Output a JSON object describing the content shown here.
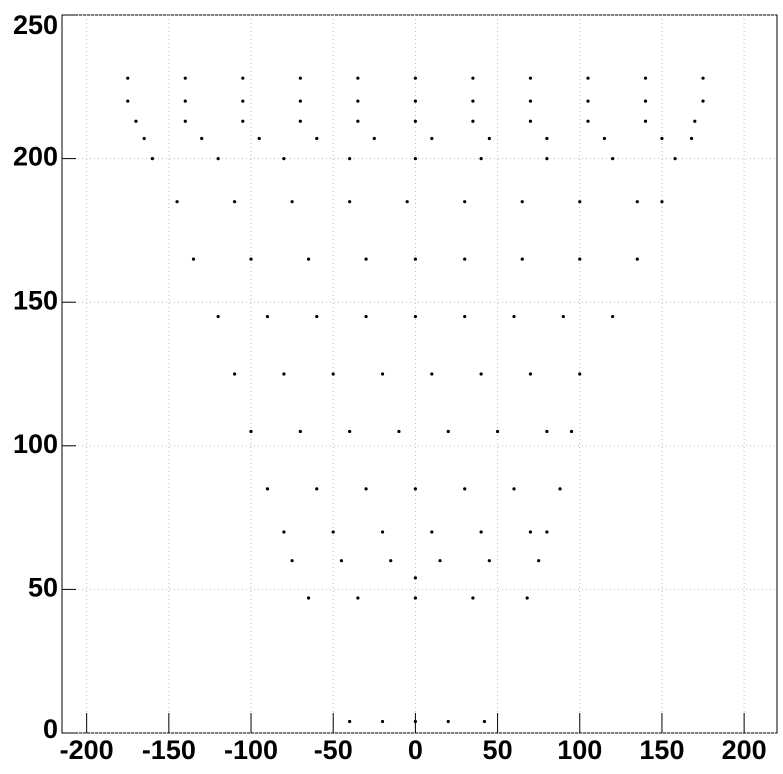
{
  "chart_data": {
    "type": "scatter",
    "color": "#000000",
    "grid": true,
    "xlim": [
      -215,
      220
    ],
    "ylim": [
      0,
      250
    ],
    "xticks": [
      -200,
      -150,
      -100,
      -50,
      0,
      50,
      100,
      150,
      200
    ],
    "yticks": [
      0,
      50,
      100,
      150,
      200,
      250
    ],
    "x": [
      -175,
      -140,
      -105,
      -70,
      -35,
      0,
      35,
      70,
      105,
      140,
      175,
      -175,
      -140,
      -105,
      -70,
      -35,
      0,
      35,
      70,
      105,
      140,
      175,
      -170,
      -140,
      -105,
      -70,
      -35,
      0,
      35,
      70,
      105,
      140,
      170,
      -165,
      -130,
      -95,
      -60,
      -25,
      10,
      45,
      80,
      115,
      150,
      168,
      -160,
      -120,
      -80,
      -40,
      0,
      40,
      80,
      120,
      158,
      -145,
      -110,
      -75,
      -40,
      -5,
      30,
      65,
      100,
      135,
      150,
      -135,
      -100,
      -65,
      -30,
      0,
      30,
      65,
      100,
      135,
      -120,
      -90,
      -60,
      -30,
      0,
      30,
      60,
      90,
      120,
      -110,
      -80,
      -50,
      -20,
      10,
      40,
      70,
      100,
      -100,
      -70,
      -40,
      -10,
      20,
      50,
      80,
      95,
      -90,
      -60,
      -30,
      0,
      30,
      60,
      88,
      -80,
      -50,
      -20,
      10,
      40,
      70,
      80,
      -75,
      -45,
      -15,
      15,
      45,
      75,
      0,
      -65,
      -35,
      0,
      35,
      68,
      -40,
      -20,
      0,
      20,
      42
    ],
    "values": [
      228,
      228,
      228,
      228,
      228,
      228,
      228,
      228,
      228,
      228,
      228,
      220,
      220,
      220,
      220,
      220,
      220,
      220,
      220,
      220,
      220,
      220,
      213,
      213,
      213,
      213,
      213,
      213,
      213,
      213,
      213,
      213,
      213,
      207,
      207,
      207,
      207,
      207,
      207,
      207,
      207,
      207,
      207,
      207,
      200,
      200,
      200,
      200,
      200,
      200,
      200,
      200,
      200,
      185,
      185,
      185,
      185,
      185,
      185,
      185,
      185,
      185,
      185,
      165,
      165,
      165,
      165,
      165,
      165,
      165,
      165,
      165,
      145,
      145,
      145,
      145,
      145,
      145,
      145,
      145,
      145,
      125,
      125,
      125,
      125,
      125,
      125,
      125,
      125,
      105,
      105,
      105,
      105,
      105,
      105,
      105,
      105,
      85,
      85,
      85,
      85,
      85,
      85,
      85,
      70,
      70,
      70,
      70,
      70,
      70,
      70,
      60,
      60,
      60,
      60,
      60,
      60,
      54,
      47,
      47,
      47,
      47,
      47,
      4,
      4,
      4,
      4,
      4
    ]
  }
}
